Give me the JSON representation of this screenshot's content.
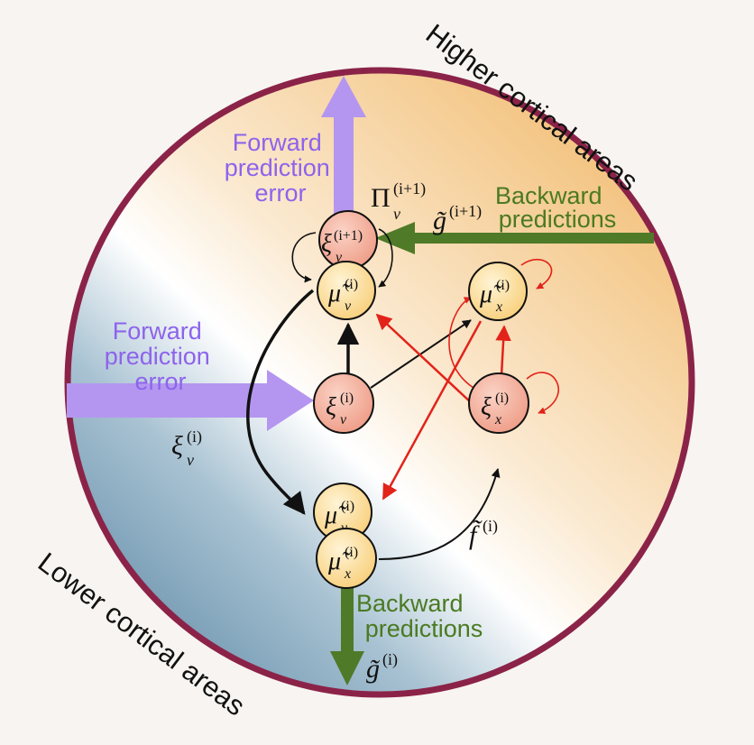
{
  "labels": {
    "higher_areas": "Higher cortical areas",
    "lower_areas": "Lower cortical areas",
    "forward_top": [
      "Forward",
      "prediction",
      "error"
    ],
    "forward_left": [
      "Forward",
      "prediction",
      "error"
    ],
    "backward_top": [
      "Backward",
      "predictions"
    ],
    "backward_bottom": [
      "Backward",
      "predictions"
    ]
  },
  "math": {
    "pi_base": "Π",
    "pi_sub": "v",
    "pi_sup": "(i+1)",
    "g_top_base": "g̃",
    "g_top_sup": "(i+1)",
    "g_bottom_base": "g̃",
    "g_bottom_sup": "(i)",
    "f_base": "f̃",
    "f_sup": "(i)",
    "xi_left_base": "ξ",
    "xi_left_sub": "v",
    "xi_left_sup": "(i)"
  },
  "nodes": {
    "xi_v_top": {
      "base": "ξ",
      "sub": "v",
      "sup": "(i+1)"
    },
    "mu_v_top": {
      "base": "μ̃",
      "sub": "v",
      "sup": "(i)"
    },
    "mu_x_right": {
      "base": "μ̃",
      "sub": "x",
      "sup": "(i)"
    },
    "xi_v_mid": {
      "base": "ξ",
      "sub": "v",
      "sup": "(i)"
    },
    "xi_x_right": {
      "base": "ξ",
      "sub": "x",
      "sup": "(i)"
    },
    "mu_v_bot": {
      "base": "μ̃",
      "sub": "v",
      "sup": "(i)"
    },
    "mu_x_bot": {
      "base": "μ̃",
      "sub": "x",
      "sup": "(i)"
    }
  },
  "colors": {
    "ring": "#8b2348",
    "forward_arrow": "#b496f0",
    "forward_text": "#8d63ec",
    "backward_arrow": "#4f7a28",
    "backward_text": "#4a7a21",
    "error_node": "#f0a795",
    "state_node": "#fbd98f",
    "red_edge": "#e2231a"
  }
}
